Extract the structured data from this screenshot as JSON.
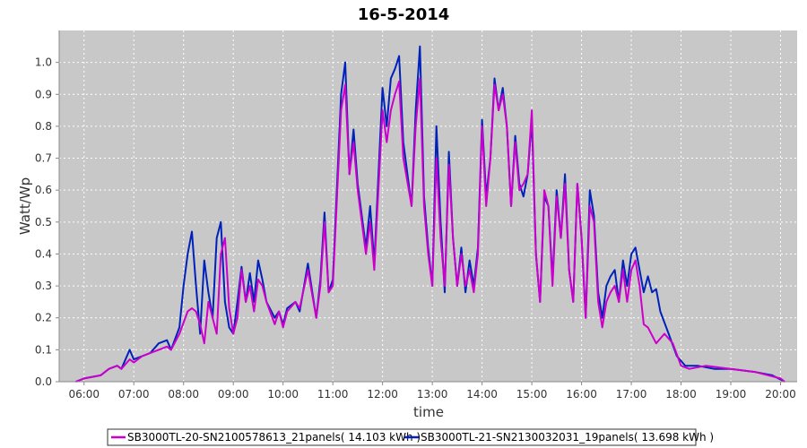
{
  "chart_data": {
    "type": "line",
    "title": "16-5-2014",
    "xlabel": "time",
    "ylabel": "Watt/Wp",
    "xlim": [
      "05:30",
      "20:20"
    ],
    "ylim": [
      0,
      1.1
    ],
    "x_ticks": [
      "06:00",
      "07:00",
      "08:00",
      "09:00",
      "10:00",
      "11:00",
      "12:00",
      "13:00",
      "14:00",
      "15:00",
      "16:00",
      "17:00",
      "18:00",
      "19:00",
      "20:00"
    ],
    "y_ticks": [
      "0.0",
      "0.1",
      "0.2",
      "0.3",
      "0.4",
      "0.5",
      "0.6",
      "0.7",
      "0.8",
      "0.9",
      "1.0"
    ],
    "grid": true,
    "legend_position": "bottom",
    "series": [
      {
        "name": "SB3000TL-20-SN2100578613_21panels( 14.103 kWh )",
        "color": "#cc00cc",
        "points": [
          [
            "05:50",
            0.0
          ],
          [
            "06:00",
            0.01
          ],
          [
            "06:20",
            0.02
          ],
          [
            "06:30",
            0.04
          ],
          [
            "06:40",
            0.05
          ],
          [
            "06:45",
            0.04
          ],
          [
            "06:55",
            0.07
          ],
          [
            "07:00",
            0.06
          ],
          [
            "07:10",
            0.08
          ],
          [
            "07:20",
            0.09
          ],
          [
            "07:30",
            0.1
          ],
          [
            "07:40",
            0.11
          ],
          [
            "07:45",
            0.1
          ],
          [
            "07:55",
            0.15
          ],
          [
            "08:05",
            0.22
          ],
          [
            "08:10",
            0.23
          ],
          [
            "08:15",
            0.22
          ],
          [
            "08:20",
            0.18
          ],
          [
            "08:25",
            0.12
          ],
          [
            "08:30",
            0.25
          ],
          [
            "08:35",
            0.2
          ],
          [
            "08:40",
            0.15
          ],
          [
            "08:45",
            0.4
          ],
          [
            "08:50",
            0.45
          ],
          [
            "08:55",
            0.23
          ],
          [
            "09:00",
            0.15
          ],
          [
            "09:05",
            0.2
          ],
          [
            "09:10",
            0.35
          ],
          [
            "09:15",
            0.25
          ],
          [
            "09:20",
            0.3
          ],
          [
            "09:25",
            0.22
          ],
          [
            "09:30",
            0.32
          ],
          [
            "09:35",
            0.3
          ],
          [
            "09:40",
            0.25
          ],
          [
            "09:50",
            0.18
          ],
          [
            "09:55",
            0.22
          ],
          [
            "10:00",
            0.17
          ],
          [
            "10:05",
            0.22
          ],
          [
            "10:15",
            0.25
          ],
          [
            "10:20",
            0.23
          ],
          [
            "10:30",
            0.35
          ],
          [
            "10:40",
            0.2
          ],
          [
            "10:45",
            0.3
          ],
          [
            "10:50",
            0.5
          ],
          [
            "10:55",
            0.28
          ],
          [
            "11:00",
            0.3
          ],
          [
            "11:10",
            0.85
          ],
          [
            "11:15",
            0.93
          ],
          [
            "11:20",
            0.65
          ],
          [
            "11:25",
            0.75
          ],
          [
            "11:30",
            0.6
          ],
          [
            "11:40",
            0.4
          ],
          [
            "11:45",
            0.5
          ],
          [
            "11:50",
            0.35
          ],
          [
            "12:00",
            0.85
          ],
          [
            "12:05",
            0.75
          ],
          [
            "12:10",
            0.85
          ],
          [
            "12:15",
            0.9
          ],
          [
            "12:20",
            0.94
          ],
          [
            "12:25",
            0.7
          ],
          [
            "12:35",
            0.55
          ],
          [
            "12:40",
            0.8
          ],
          [
            "12:45",
            0.95
          ],
          [
            "12:50",
            0.55
          ],
          [
            "12:55",
            0.4
          ],
          [
            "13:00",
            0.3
          ],
          [
            "13:05",
            0.7
          ],
          [
            "13:10",
            0.45
          ],
          [
            "13:15",
            0.3
          ],
          [
            "13:20",
            0.68
          ],
          [
            "13:25",
            0.45
          ],
          [
            "13:30",
            0.3
          ],
          [
            "13:35",
            0.4
          ],
          [
            "13:40",
            0.3
          ],
          [
            "13:45",
            0.35
          ],
          [
            "13:50",
            0.28
          ],
          [
            "13:55",
            0.4
          ],
          [
            "14:00",
            0.8
          ],
          [
            "14:05",
            0.55
          ],
          [
            "14:10",
            0.7
          ],
          [
            "14:15",
            0.93
          ],
          [
            "14:20",
            0.85
          ],
          [
            "14:25",
            0.9
          ],
          [
            "14:30",
            0.8
          ],
          [
            "14:35",
            0.55
          ],
          [
            "14:40",
            0.75
          ],
          [
            "14:45",
            0.6
          ],
          [
            "14:50",
            0.62
          ],
          [
            "14:55",
            0.65
          ],
          [
            "15:00",
            0.85
          ],
          [
            "15:05",
            0.4
          ],
          [
            "15:10",
            0.25
          ],
          [
            "15:15",
            0.6
          ],
          [
            "15:20",
            0.55
          ],
          [
            "15:25",
            0.3
          ],
          [
            "15:30",
            0.58
          ],
          [
            "15:35",
            0.45
          ],
          [
            "15:40",
            0.62
          ],
          [
            "15:45",
            0.35
          ],
          [
            "15:50",
            0.25
          ],
          [
            "15:55",
            0.62
          ],
          [
            "16:00",
            0.45
          ],
          [
            "16:05",
            0.2
          ],
          [
            "16:10",
            0.55
          ],
          [
            "16:15",
            0.5
          ],
          [
            "16:20",
            0.25
          ],
          [
            "16:25",
            0.17
          ],
          [
            "16:30",
            0.25
          ],
          [
            "16:35",
            0.28
          ],
          [
            "16:40",
            0.3
          ],
          [
            "16:45",
            0.25
          ],
          [
            "16:50",
            0.35
          ],
          [
            "16:55",
            0.25
          ],
          [
            "17:00",
            0.35
          ],
          [
            "17:05",
            0.38
          ],
          [
            "17:10",
            0.3
          ],
          [
            "17:15",
            0.18
          ],
          [
            "17:20",
            0.17
          ],
          [
            "17:30",
            0.12
          ],
          [
            "17:40",
            0.15
          ],
          [
            "17:50",
            0.12
          ],
          [
            "18:00",
            0.05
          ],
          [
            "18:10",
            0.04
          ],
          [
            "18:30",
            0.05
          ],
          [
            "19:00",
            0.04
          ],
          [
            "19:30",
            0.03
          ],
          [
            "20:00",
            0.01
          ],
          [
            "20:05",
            0.0
          ]
        ]
      },
      {
        "name": "SB3000TL-21-SN2130032031_19panels( 13.698 kWh )",
        "color": "#0022bb",
        "points": [
          [
            "05:50",
            0.0
          ],
          [
            "06:00",
            0.01
          ],
          [
            "06:20",
            0.02
          ],
          [
            "06:30",
            0.04
          ],
          [
            "06:40",
            0.05
          ],
          [
            "06:45",
            0.04
          ],
          [
            "06:55",
            0.1
          ],
          [
            "07:00",
            0.07
          ],
          [
            "07:10",
            0.08
          ],
          [
            "07:20",
            0.09
          ],
          [
            "07:30",
            0.12
          ],
          [
            "07:40",
            0.13
          ],
          [
            "07:45",
            0.1
          ],
          [
            "07:55",
            0.17
          ],
          [
            "08:00",
            0.3
          ],
          [
            "08:05",
            0.4
          ],
          [
            "08:10",
            0.47
          ],
          [
            "08:15",
            0.3
          ],
          [
            "08:20",
            0.15
          ],
          [
            "08:25",
            0.38
          ],
          [
            "08:30",
            0.28
          ],
          [
            "08:35",
            0.2
          ],
          [
            "08:40",
            0.45
          ],
          [
            "08:45",
            0.5
          ],
          [
            "08:50",
            0.25
          ],
          [
            "08:55",
            0.17
          ],
          [
            "09:00",
            0.15
          ],
          [
            "09:05",
            0.25
          ],
          [
            "09:10",
            0.36
          ],
          [
            "09:15",
            0.25
          ],
          [
            "09:20",
            0.34
          ],
          [
            "09:25",
            0.25
          ],
          [
            "09:30",
            0.38
          ],
          [
            "09:35",
            0.32
          ],
          [
            "09:40",
            0.25
          ],
          [
            "09:50",
            0.2
          ],
          [
            "09:55",
            0.22
          ],
          [
            "10:00",
            0.18
          ],
          [
            "10:05",
            0.23
          ],
          [
            "10:15",
            0.25
          ],
          [
            "10:20",
            0.22
          ],
          [
            "10:30",
            0.37
          ],
          [
            "10:40",
            0.2
          ],
          [
            "10:45",
            0.32
          ],
          [
            "10:50",
            0.53
          ],
          [
            "10:55",
            0.28
          ],
          [
            "11:00",
            0.32
          ],
          [
            "11:10",
            0.9
          ],
          [
            "11:15",
            1.0
          ],
          [
            "11:20",
            0.65
          ],
          [
            "11:25",
            0.79
          ],
          [
            "11:30",
            0.62
          ],
          [
            "11:40",
            0.42
          ],
          [
            "11:45",
            0.55
          ],
          [
            "11:50",
            0.37
          ],
          [
            "12:00",
            0.92
          ],
          [
            "12:05",
            0.8
          ],
          [
            "12:10",
            0.95
          ],
          [
            "12:15",
            0.98
          ],
          [
            "12:20",
            1.02
          ],
          [
            "12:25",
            0.75
          ],
          [
            "12:35",
            0.55
          ],
          [
            "12:40",
            0.85
          ],
          [
            "12:45",
            1.05
          ],
          [
            "12:50",
            0.58
          ],
          [
            "12:55",
            0.42
          ],
          [
            "13:00",
            0.3
          ],
          [
            "13:05",
            0.8
          ],
          [
            "13:10",
            0.5
          ],
          [
            "13:15",
            0.28
          ],
          [
            "13:20",
            0.72
          ],
          [
            "13:25",
            0.45
          ],
          [
            "13:30",
            0.3
          ],
          [
            "13:35",
            0.42
          ],
          [
            "13:40",
            0.28
          ],
          [
            "13:45",
            0.38
          ],
          [
            "13:50",
            0.3
          ],
          [
            "13:55",
            0.42
          ],
          [
            "14:00",
            0.82
          ],
          [
            "14:05",
            0.58
          ],
          [
            "14:10",
            0.7
          ],
          [
            "14:15",
            0.95
          ],
          [
            "14:20",
            0.85
          ],
          [
            "14:25",
            0.92
          ],
          [
            "14:30",
            0.8
          ],
          [
            "14:35",
            0.55
          ],
          [
            "14:40",
            0.77
          ],
          [
            "14:45",
            0.62
          ],
          [
            "14:50",
            0.58
          ],
          [
            "14:55",
            0.65
          ],
          [
            "15:00",
            0.82
          ],
          [
            "15:05",
            0.4
          ],
          [
            "15:10",
            0.25
          ],
          [
            "15:15",
            0.58
          ],
          [
            "15:20",
            0.55
          ],
          [
            "15:25",
            0.32
          ],
          [
            "15:30",
            0.6
          ],
          [
            "15:35",
            0.45
          ],
          [
            "15:40",
            0.65
          ],
          [
            "15:45",
            0.35
          ],
          [
            "15:50",
            0.25
          ],
          [
            "15:55",
            0.62
          ],
          [
            "16:00",
            0.45
          ],
          [
            "16:05",
            0.2
          ],
          [
            "16:10",
            0.6
          ],
          [
            "16:15",
            0.52
          ],
          [
            "16:20",
            0.28
          ],
          [
            "16:25",
            0.2
          ],
          [
            "16:30",
            0.3
          ],
          [
            "16:35",
            0.33
          ],
          [
            "16:40",
            0.35
          ],
          [
            "16:45",
            0.25
          ],
          [
            "16:50",
            0.38
          ],
          [
            "16:55",
            0.3
          ],
          [
            "17:00",
            0.4
          ],
          [
            "17:05",
            0.42
          ],
          [
            "17:10",
            0.35
          ],
          [
            "17:15",
            0.28
          ],
          [
            "17:20",
            0.33
          ],
          [
            "17:25",
            0.28
          ],
          [
            "17:30",
            0.29
          ],
          [
            "17:35",
            0.22
          ],
          [
            "17:45",
            0.15
          ],
          [
            "17:55",
            0.08
          ],
          [
            "18:05",
            0.05
          ],
          [
            "18:20",
            0.05
          ],
          [
            "18:40",
            0.04
          ],
          [
            "19:00",
            0.04
          ],
          [
            "19:30",
            0.03
          ],
          [
            "19:50",
            0.02
          ],
          [
            "20:05",
            0.0
          ]
        ]
      }
    ]
  }
}
